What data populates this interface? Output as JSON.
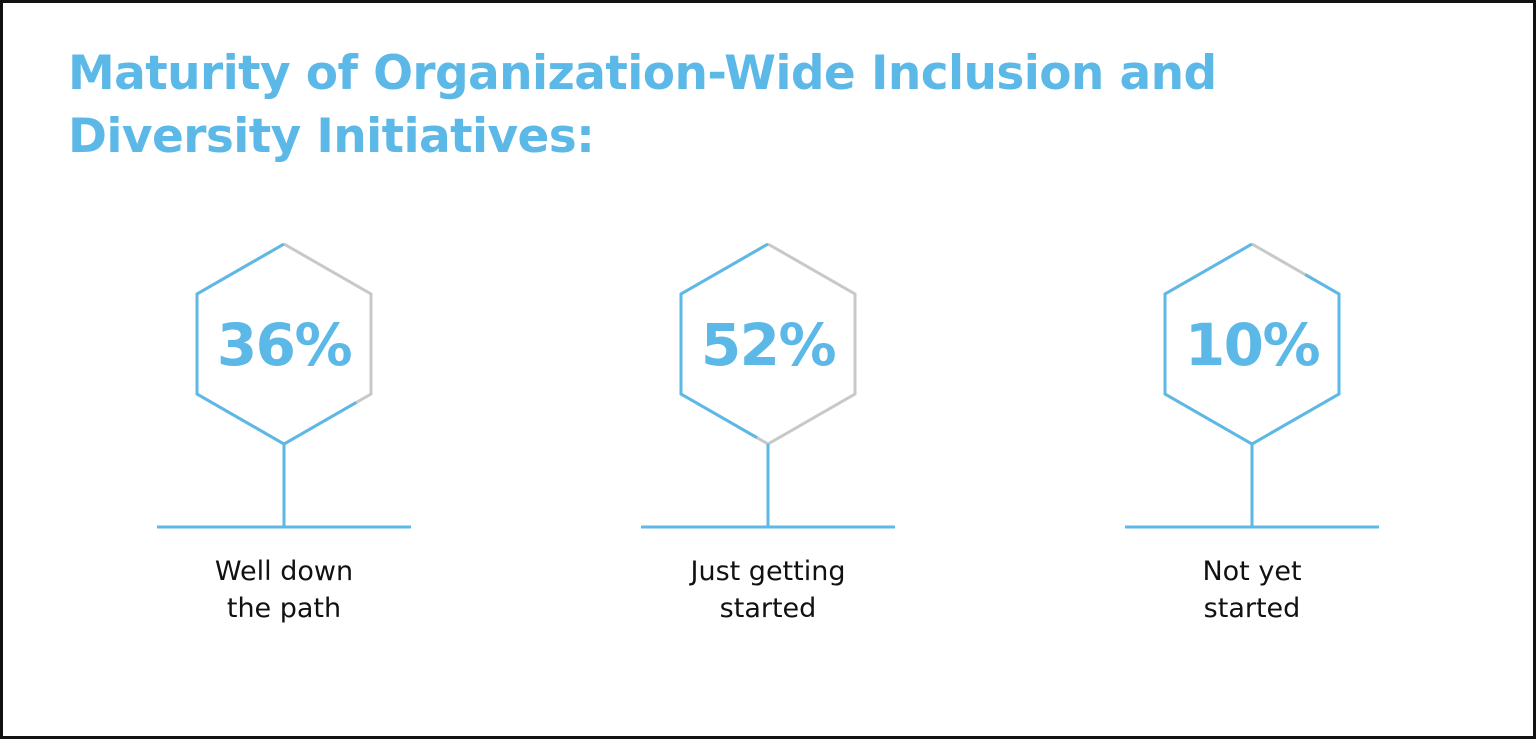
{
  "title_lines": [
    "Maturity of Organization-Wide Inclusion and",
    "Diversity Initiatives:"
  ],
  "colors": {
    "accent": "#5cb8e6",
    "track": "#c8c8c8",
    "label": "#111111",
    "border": "#111111"
  },
  "chart_data": {
    "type": "hexagon-percentage",
    "title": "Maturity of Organization-Wide Inclusion and Diversity Initiatives:",
    "categories": [
      [
        "Well down",
        "the path"
      ],
      [
        "Just getting",
        "started"
      ],
      [
        "Not yet",
        "started"
      ]
    ],
    "values": [
      36,
      52,
      10
    ],
    "value_labels": [
      "36%",
      "52%",
      "10%"
    ],
    "unit": "%",
    "ylim": [
      0,
      100
    ]
  }
}
